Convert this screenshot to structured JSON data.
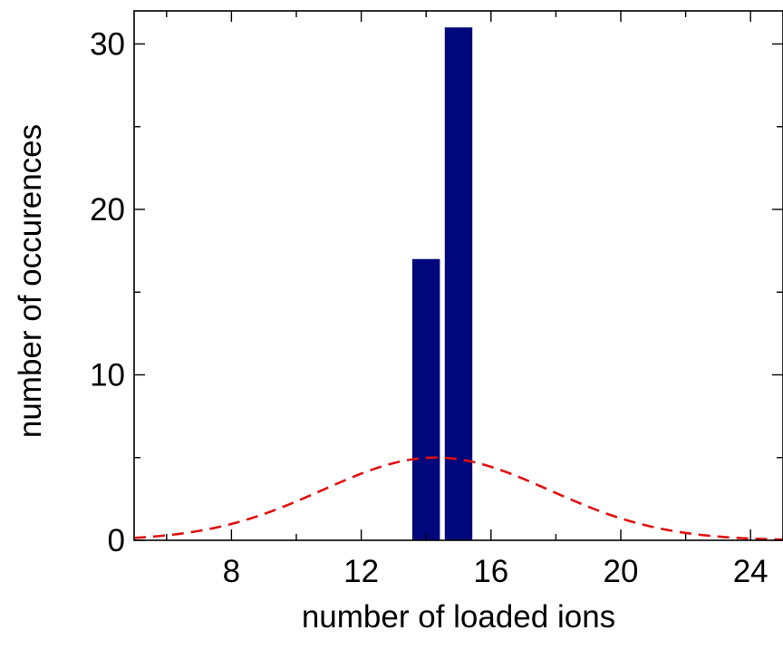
{
  "chart_data": {
    "type": "bar",
    "title": "",
    "xlabel": "number of loaded ions",
    "ylabel": "number of occurences",
    "xlim": [
      5,
      25
    ],
    "ylim": [
      0,
      32
    ],
    "xticks": [
      8,
      12,
      16,
      20,
      24
    ],
    "yticks": [
      0,
      10,
      20,
      30
    ],
    "grid": false,
    "series": [
      {
        "type": "bar",
        "color": "#00087b",
        "bar_width": 0.85,
        "x": [
          14,
          15
        ],
        "values": [
          17,
          31
        ]
      },
      {
        "type": "line",
        "style": "dashed",
        "color": "#e01010",
        "curve": "gaussian",
        "amplitude": 5,
        "mean": 14.3,
        "sigma": 3.5
      }
    ]
  }
}
